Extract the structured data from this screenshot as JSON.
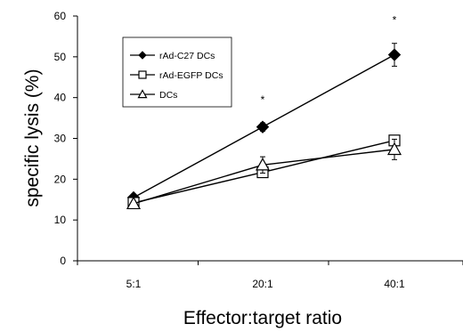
{
  "chart_data": {
    "type": "line",
    "title": "",
    "xlabel": "Effector:target ratio",
    "ylabel": "specific lysis (%)",
    "categories": [
      "5:1",
      "20:1",
      "40:1"
    ],
    "ylim": [
      0,
      60
    ],
    "yticks": [
      0,
      10,
      20,
      30,
      40,
      50,
      60
    ],
    "grid": false,
    "legend_position": "upper-left",
    "series": [
      {
        "name": "rAd-C27 DCs",
        "marker": "filled-diamond",
        "color": "#000000",
        "values": [
          15.5,
          32.8,
          50.5
        ],
        "errors": [
          0,
          1.0,
          2.8
        ]
      },
      {
        "name": "rAd-EGFP DCs",
        "marker": "open-square",
        "color": "#000000",
        "values": [
          14.2,
          21.7,
          29.5
        ],
        "errors": [
          0,
          1.0,
          0
        ]
      },
      {
        "name": "DCs",
        "marker": "open-triangle",
        "color": "#000000",
        "values": [
          14.0,
          23.5,
          27.3
        ],
        "errors": [
          0,
          2.0,
          2.5
        ]
      }
    ],
    "annotations": [
      {
        "text": "*",
        "category": "20:1"
      },
      {
        "text": "*",
        "category": "40:1"
      }
    ]
  }
}
